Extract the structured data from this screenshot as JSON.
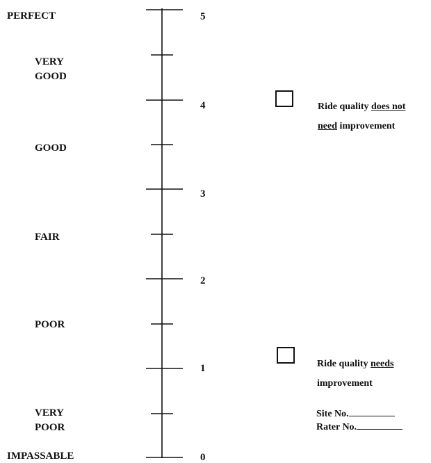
{
  "scale": {
    "labels": {
      "perfect": "PERFECT",
      "very_good": [
        "VERY",
        "GOOD"
      ],
      "good": "GOOD",
      "fair": "FAIR",
      "poor": "POOR",
      "very_poor": [
        "VERY",
        "POOR"
      ],
      "impassable": "IMPASSABLE"
    },
    "numbers": [
      "5",
      "4",
      "3",
      "2",
      "1",
      "0"
    ]
  },
  "options": [
    {
      "pre": "Ride quality ",
      "underlined": [
        "does not",
        "need"
      ],
      "post": " improvement"
    },
    {
      "pre": "Ride quality ",
      "underlined": [
        "needs"
      ],
      "post": "improvement"
    }
  ],
  "fields": {
    "site": "Site No.",
    "rater": "Rater No."
  },
  "colors": {
    "ink": "#111111",
    "paper": "#ffffff"
  }
}
